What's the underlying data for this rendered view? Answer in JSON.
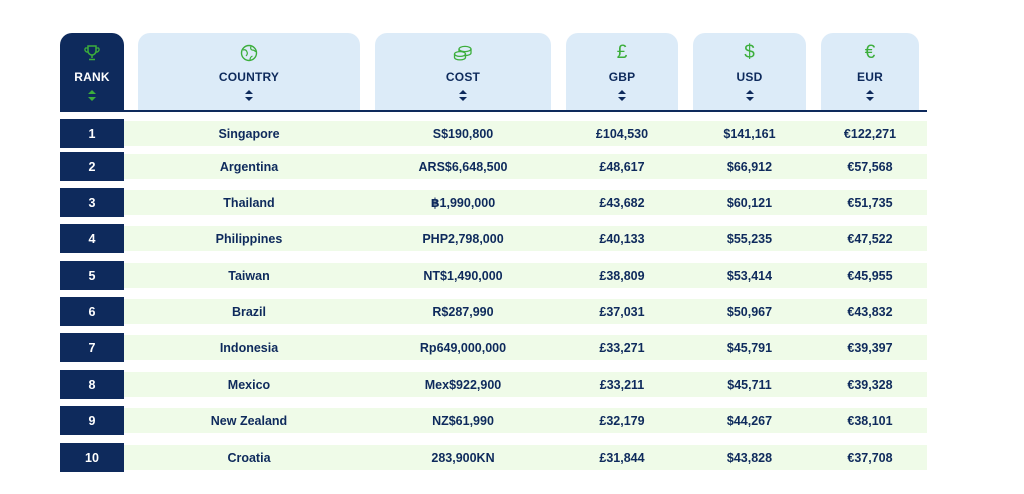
{
  "header": {
    "rank": {
      "label": "RANK",
      "icon": "trophy-icon"
    },
    "country": {
      "label": "COUNTRY",
      "icon": "globe-icon"
    },
    "cost": {
      "label": "COST",
      "icon": "coins-icon"
    },
    "gbp": {
      "label": "GBP",
      "icon": "pound-icon",
      "symbol": "£"
    },
    "usd": {
      "label": "USD",
      "icon": "dollar-icon",
      "symbol": "$"
    },
    "eur": {
      "label": "EUR",
      "icon": "euro-icon",
      "symbol": "€"
    }
  },
  "colors": {
    "navy": "#0e2a5c",
    "header_bg": "#dcebf8",
    "row_bg": "#effbe8",
    "accent_green": "#3cae3c"
  },
  "rows": [
    {
      "rank": "1",
      "country": "Singapore",
      "cost": "S$190,800",
      "gbp": "£104,530",
      "usd": "$141,161",
      "eur": "€122,271"
    },
    {
      "rank": "2",
      "country": "Argentina",
      "cost": "ARS$6,648,500",
      "gbp": "£48,617",
      "usd": "$66,912",
      "eur": "€57,568"
    },
    {
      "rank": "3",
      "country": "Thailand",
      "cost": "฿1,990,000",
      "gbp": "£43,682",
      "usd": "$60,121",
      "eur": "€51,735"
    },
    {
      "rank": "4",
      "country": "Philippines",
      "cost": "PHP2,798,000",
      "gbp": "£40,133",
      "usd": "$55,235",
      "eur": "€47,522"
    },
    {
      "rank": "5",
      "country": "Taiwan",
      "cost": "NT$1,490,000",
      "gbp": "£38,809",
      "usd": "$53,414",
      "eur": "€45,955"
    },
    {
      "rank": "6",
      "country": "Brazil",
      "cost": "R$287,990",
      "gbp": "£37,031",
      "usd": "$50,967",
      "eur": "€43,832"
    },
    {
      "rank": "7",
      "country": "Indonesia",
      "cost": "Rp649,000,000",
      "gbp": "£33,271",
      "usd": "$45,791",
      "eur": "€39,397"
    },
    {
      "rank": "8",
      "country": "Mexico",
      "cost": "Mex$922,900",
      "gbp": "£33,211",
      "usd": "$45,711",
      "eur": "€39,328"
    },
    {
      "rank": "9",
      "country": "New Zealand",
      "cost": "NZ$61,990",
      "gbp": "£32,179",
      "usd": "$44,267",
      "eur": "€38,101"
    },
    {
      "rank": "10",
      "country": "Croatia",
      "cost": "283,900KN",
      "gbp": "£31,844",
      "usd": "$43,828",
      "eur": "€37,708"
    }
  ]
}
